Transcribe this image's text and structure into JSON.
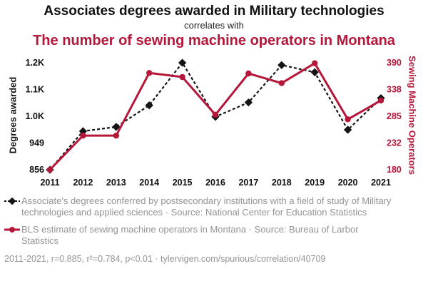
{
  "header": {
    "title_top": "Associates degrees awarded in Military technologies",
    "subtitle": "correlates with",
    "title_bottom": "The number of sewing machine operators in Montana"
  },
  "colors": {
    "accent_red": "#b5173a",
    "series_black": "#141414",
    "legend_gray": "#949494"
  },
  "chart_data": {
    "type": "line",
    "x": [
      2011,
      2012,
      2013,
      2014,
      2015,
      2016,
      2017,
      2018,
      2019,
      2020,
      2021
    ],
    "series": [
      {
        "name": "Associate's degrees conferred in Military technologies",
        "axis": "left",
        "color": "#141414",
        "style": "dashed-diamond",
        "values": [
          856,
          990,
          1005,
          1080,
          1228,
          1040,
          1090,
          1220,
          1195,
          995,
          1105
        ]
      },
      {
        "name": "Sewing machine operators in Montana",
        "axis": "right",
        "color": "#b5173a",
        "style": "solid-circle",
        "values": [
          180,
          247,
          247,
          370,
          362,
          288,
          369,
          350,
          389,
          279,
          316
        ]
      }
    ],
    "left_axis": {
      "label": "Degrees awarded",
      "range": [
        856,
        1228
      ],
      "ticks": [
        856,
        949,
        1042,
        1135,
        1228
      ],
      "tick_labels": [
        "856",
        "949",
        "1.0K",
        "1.1K",
        "1.2K"
      ]
    },
    "right_axis": {
      "label": "Sewing Machine Operators",
      "range": [
        180,
        390
      ],
      "ticks": [
        180,
        232.5,
        285,
        337.5,
        390
      ],
      "tick_labels": [
        "180",
        "232",
        "285",
        "338",
        "390"
      ]
    },
    "grid": false,
    "legend_position": "below"
  },
  "legend": [
    {
      "marker": "black-dashed-diamond",
      "text": "Associate's degrees conferred by postsecondary institutions with a field of study of Military technologies and applied sciences · Source: National Center for Education Statistics"
    },
    {
      "marker": "red-solid-circle",
      "text": "BLS estimate of sewing machine operators in Montana · Source: Bureau of Larbor Statistics"
    }
  ],
  "footer": "2011-2021, r=0.885, r²=0.784, p<0.01 · tylervigen.com/spurious/correlation/40709"
}
